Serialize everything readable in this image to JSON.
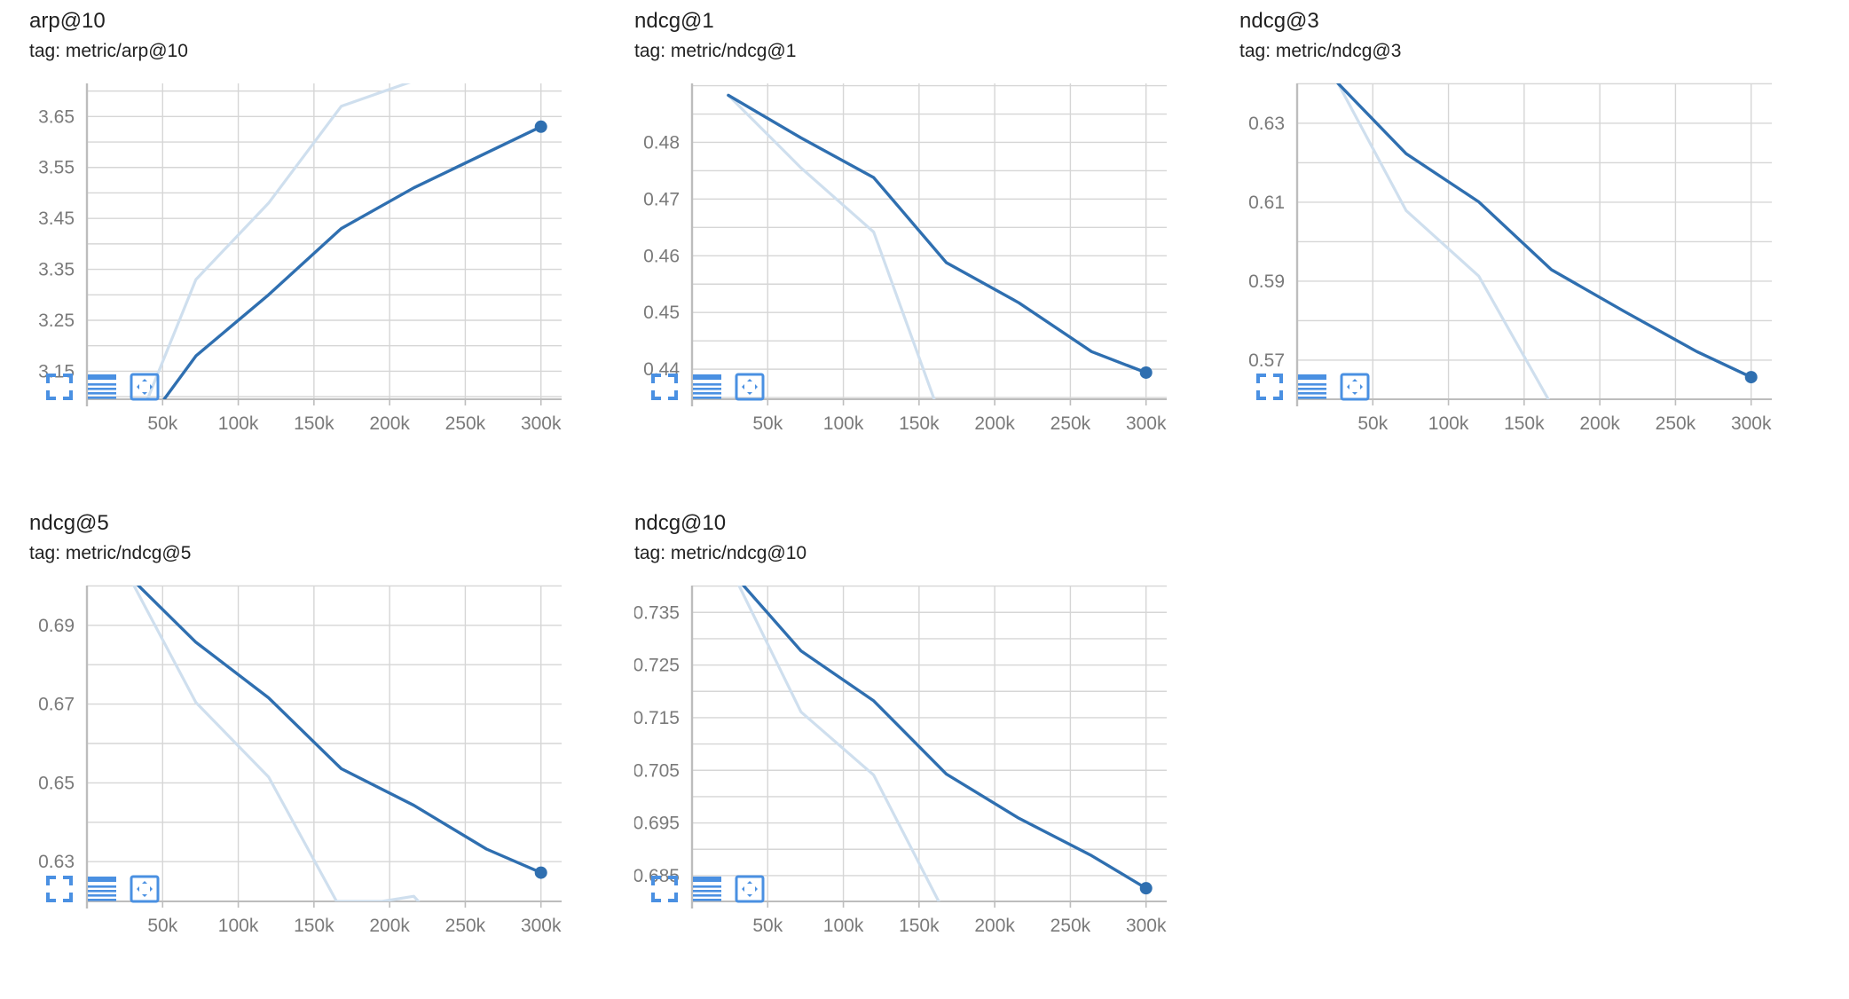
{
  "theme": {
    "series_color": "#2f6fb0",
    "raw_color": "#cfdfee",
    "grid_color": "#d6d6d6",
    "axis_color": "#bdbdbd",
    "tick_label_color": "#7a7a7a",
    "icon_color": "#4a90e2"
  },
  "toolbar": {
    "icons": [
      "fullscreen-icon",
      "data-table-icon",
      "fit-domain-icon"
    ]
  },
  "chart_data": [
    {
      "type": "line",
      "title": "arp@10",
      "tag": "tag: metric/arp@10",
      "xlim": [
        0,
        350000
      ],
      "ylim": [
        3.095,
        3.715
      ],
      "x_ticks": [
        50000,
        100000,
        150000,
        200000,
        250000,
        300000
      ],
      "x_tick_labels": [
        "50k",
        "100k",
        "150k",
        "200k",
        "250k",
        "300k"
      ],
      "y_ticks": [
        3.15,
        3.25,
        3.35,
        3.45,
        3.55,
        3.65
      ],
      "y_tick_labels": [
        "3.15",
        "3.25",
        "3.35",
        "3.45",
        "3.55",
        "3.65"
      ],
      "series": [
        {
          "role": "smoothed",
          "x": [
            51000,
            72000,
            120000,
            168000,
            216000,
            300000
          ],
          "y": [
            3.095,
            3.18,
            3.3,
            3.43,
            3.51,
            3.63
          ]
        },
        {
          "role": "raw",
          "x": [
            40000,
            72000,
            120000,
            168000,
            216000
          ],
          "y": [
            3.095,
            3.33,
            3.48,
            3.67,
            3.72
          ]
        }
      ],
      "last_point": {
        "x": 300000,
        "y": 3.63
      }
    },
    {
      "type": "line",
      "title": "ndcg@1",
      "tag": "tag: metric/ndcg@1",
      "xlim": [
        0,
        350000
      ],
      "ylim": [
        0.4347,
        0.4904
      ],
      "x_ticks": [
        50000,
        100000,
        150000,
        200000,
        250000,
        300000
      ],
      "x_tick_labels": [
        "50k",
        "100k",
        "150k",
        "200k",
        "250k",
        "300k"
      ],
      "y_ticks": [
        0.44,
        0.45,
        0.46,
        0.47,
        0.48
      ],
      "y_tick_labels": [
        "0.44",
        "0.45",
        "0.46",
        "0.47",
        "0.48"
      ],
      "series": [
        {
          "role": "smoothed",
          "x": [
            24000,
            72000,
            120000,
            168000,
            216000,
            264000,
            300000
          ],
          "y": [
            0.4883,
            0.4808,
            0.4738,
            0.4588,
            0.4517,
            0.4431,
            0.4394
          ]
        },
        {
          "role": "raw",
          "x": [
            24000,
            72000,
            120000,
            160000
          ],
          "y": [
            0.4883,
            0.4755,
            0.4642,
            0.4347
          ]
        }
      ],
      "last_point": {
        "x": 300000,
        "y": 0.4394
      }
    },
    {
      "type": "line",
      "title": "ndcg@3",
      "tag": "tag: metric/ndcg@3",
      "xlim": [
        0,
        350000
      ],
      "ylim": [
        0.5601,
        0.6401
      ],
      "x_ticks": [
        50000,
        100000,
        150000,
        200000,
        250000,
        300000
      ],
      "x_tick_labels": [
        "50k",
        "100k",
        "150k",
        "200k",
        "250k",
        "300k"
      ],
      "y_ticks": [
        0.57,
        0.59,
        0.61,
        0.63
      ],
      "y_tick_labels": [
        "0.57",
        "0.59",
        "0.61",
        "0.63"
      ],
      "series": [
        {
          "role": "smoothed",
          "x": [
            27000,
            72000,
            120000,
            168000,
            216000,
            264000,
            300000
          ],
          "y": [
            0.6401,
            0.6223,
            0.6101,
            0.5929,
            0.5824,
            0.5722,
            0.5657
          ]
        },
        {
          "role": "raw",
          "x": [
            27000,
            72000,
            120000,
            166000
          ],
          "y": [
            0.6401,
            0.6079,
            0.5913,
            0.5601
          ]
        }
      ],
      "last_point": {
        "x": 300000,
        "y": 0.5657
      }
    },
    {
      "type": "line",
      "title": "ndcg@5",
      "tag": "tag: metric/ndcg@5",
      "xlim": [
        0,
        350000
      ],
      "ylim": [
        0.6199,
        0.7001
      ],
      "x_ticks": [
        50000,
        100000,
        150000,
        200000,
        250000,
        300000
      ],
      "x_tick_labels": [
        "50k",
        "100k",
        "150k",
        "200k",
        "250k",
        "300k"
      ],
      "y_ticks": [
        0.63,
        0.65,
        0.67,
        0.69
      ],
      "y_tick_labels": [
        "0.63",
        "0.65",
        "0.67",
        "0.69"
      ],
      "series": [
        {
          "role": "smoothed",
          "x": [
            34000,
            72000,
            120000,
            168000,
            216000,
            264000,
            300000
          ],
          "y": [
            0.7001,
            0.6857,
            0.6716,
            0.6536,
            0.6443,
            0.6332,
            0.6272
          ]
        },
        {
          "role": "raw",
          "x": [
            31000,
            72000,
            120000,
            165000,
            195000,
            216000,
            219000
          ],
          "y": [
            0.7001,
            0.6704,
            0.6515,
            0.6199,
            0.6199,
            0.6212,
            0.6199
          ]
        }
      ],
      "last_point": {
        "x": 300000,
        "y": 0.6272
      }
    },
    {
      "type": "line",
      "title": "ndcg@10",
      "tag": "tag: metric/ndcg@10",
      "xlim": [
        0,
        350000
      ],
      "ylim": [
        0.6801,
        0.7401
      ],
      "x_ticks": [
        50000,
        100000,
        150000,
        200000,
        250000,
        300000
      ],
      "x_tick_labels": [
        "50k",
        "100k",
        "150k",
        "200k",
        "250k",
        "300k"
      ],
      "y_ticks": [
        0.685,
        0.695,
        0.705,
        0.715,
        0.725,
        0.735
      ],
      "y_tick_labels": [
        "0.685",
        "0.695",
        "0.705",
        "0.715",
        "0.725",
        "0.735"
      ],
      "series": [
        {
          "role": "smoothed",
          "x": [
            34000,
            72000,
            120000,
            168000,
            216000,
            264000,
            300000
          ],
          "y": [
            0.7401,
            0.7277,
            0.7182,
            0.7043,
            0.6959,
            0.6888,
            0.6826
          ]
        },
        {
          "role": "raw",
          "x": [
            31000,
            72000,
            120000,
            163000
          ],
          "y": [
            0.7401,
            0.7161,
            0.7041,
            0.6801
          ]
        }
      ],
      "last_point": {
        "x": 300000,
        "y": 0.6826
      }
    }
  ]
}
